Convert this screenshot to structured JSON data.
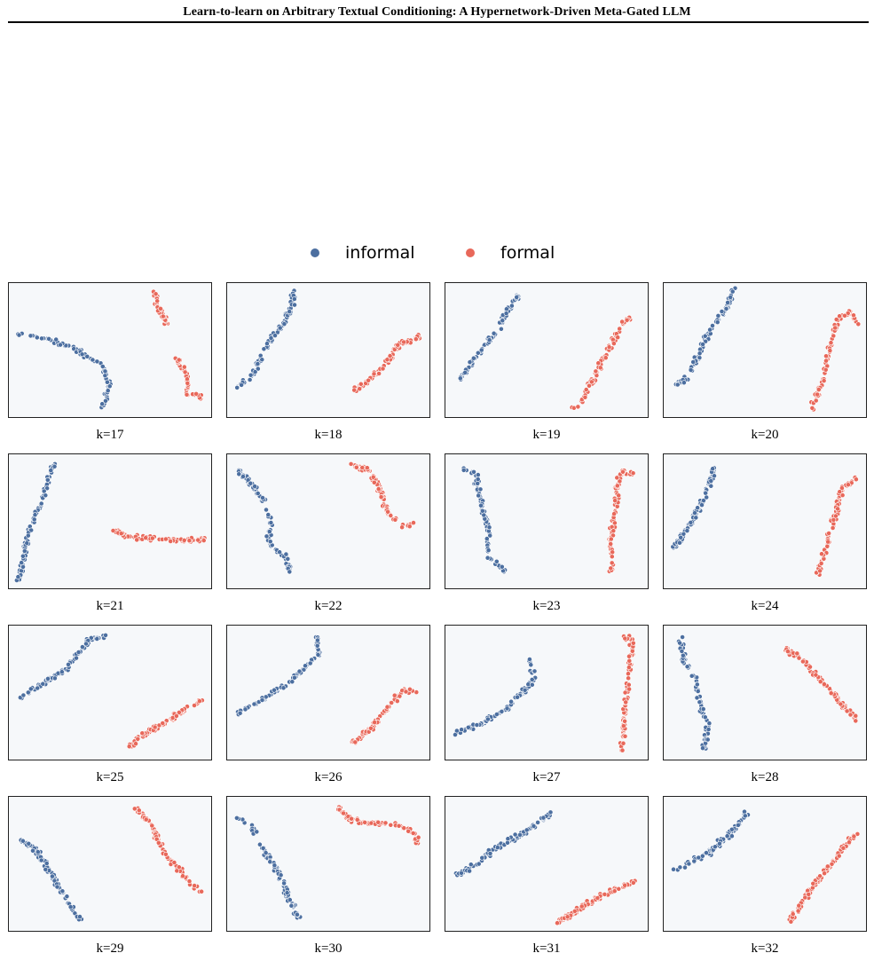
{
  "header": {
    "title": "Learn-to-learn on Arbitrary Textual Conditioning: A Hypernetwork-Driven Meta-Gated LLM"
  },
  "legend": {
    "entries": [
      {
        "label": "informal",
        "color": "#4c6fa0"
      },
      {
        "label": "formal",
        "color": "#e8685a"
      }
    ]
  },
  "colors": {
    "informal": "#4c6fa0",
    "formal": "#e8685a",
    "panel_background": "#f6f8fa"
  },
  "chart_data": [
    {
      "type": "scatter",
      "caption": "k=17",
      "series": [
        {
          "name": "informal",
          "trace": [
            [
              0.04,
              0.63
            ],
            [
              0.15,
              0.6
            ],
            [
              0.3,
              0.53
            ],
            [
              0.45,
              0.4
            ],
            [
              0.5,
              0.25
            ],
            [
              0.46,
              0.07
            ]
          ]
        },
        {
          "name": "formal",
          "trace": [
            [
              0.72,
              0.93
            ],
            [
              0.74,
              0.8
            ],
            [
              0.78,
              0.7
            ]
          ],
          "trace2": [
            [
              0.83,
              0.44
            ],
            [
              0.88,
              0.32
            ],
            [
              0.88,
              0.18
            ],
            [
              0.96,
              0.15
            ]
          ]
        }
      ]
    },
    {
      "type": "scatter",
      "caption": "k=18",
      "series": [
        {
          "name": "informal",
          "trace": [
            [
              0.05,
              0.22
            ],
            [
              0.12,
              0.3
            ],
            [
              0.2,
              0.55
            ],
            [
              0.28,
              0.7
            ],
            [
              0.32,
              0.83
            ],
            [
              0.33,
              0.96
            ]
          ]
        },
        {
          "name": "formal",
          "trace": [
            [
              0.63,
              0.2
            ],
            [
              0.72,
              0.3
            ],
            [
              0.78,
              0.38
            ],
            [
              0.85,
              0.55
            ],
            [
              0.93,
              0.58
            ],
            [
              0.96,
              0.62
            ]
          ]
        }
      ]
    },
    {
      "type": "scatter",
      "caption": "k=19",
      "series": [
        {
          "name": "informal",
          "trace": [
            [
              0.05,
              0.24
            ],
            [
              0.12,
              0.38
            ],
            [
              0.2,
              0.55
            ],
            [
              0.26,
              0.65
            ],
            [
              0.3,
              0.78
            ],
            [
              0.36,
              0.92
            ]
          ]
        },
        {
          "name": "formal",
          "trace": [
            [
              0.63,
              0.06
            ],
            [
              0.68,
              0.12
            ],
            [
              0.75,
              0.35
            ],
            [
              0.82,
              0.55
            ],
            [
              0.88,
              0.7
            ],
            [
              0.92,
              0.75
            ]
          ]
        }
      ]
    },
    {
      "type": "scatter",
      "caption": "k=20",
      "series": [
        {
          "name": "informal",
          "trace": [
            [
              0.05,
              0.22
            ],
            [
              0.12,
              0.3
            ],
            [
              0.18,
              0.48
            ],
            [
              0.22,
              0.63
            ],
            [
              0.3,
              0.78
            ],
            [
              0.35,
              0.96
            ]
          ]
        },
        {
          "name": "formal",
          "trace": [
            [
              0.73,
              0.06
            ],
            [
              0.78,
              0.25
            ],
            [
              0.82,
              0.5
            ],
            [
              0.86,
              0.73
            ],
            [
              0.92,
              0.78
            ],
            [
              0.96,
              0.7
            ]
          ]
        }
      ]
    },
    {
      "type": "scatter",
      "caption": "k=21",
      "series": [
        {
          "name": "informal",
          "trace": [
            [
              0.04,
              0.05
            ],
            [
              0.08,
              0.25
            ],
            [
              0.1,
              0.45
            ],
            [
              0.15,
              0.6
            ],
            [
              0.18,
              0.75
            ],
            [
              0.22,
              0.92
            ]
          ]
        },
        {
          "name": "formal",
          "trace": [
            [
              0.52,
              0.43
            ],
            [
              0.6,
              0.38
            ],
            [
              0.75,
              0.37
            ],
            [
              0.85,
              0.35
            ],
            [
              0.96,
              0.37
            ]
          ]
        }
      ]
    },
    {
      "type": "scatter",
      "caption": "k=22",
      "series": [
        {
          "name": "informal",
          "trace": [
            [
              0.05,
              0.88
            ],
            [
              0.12,
              0.78
            ],
            [
              0.18,
              0.65
            ],
            [
              0.22,
              0.5
            ],
            [
              0.2,
              0.35
            ],
            [
              0.28,
              0.25
            ],
            [
              0.32,
              0.1
            ]
          ]
        },
        {
          "name": "formal",
          "trace": [
            [
              0.62,
              0.92
            ],
            [
              0.7,
              0.88
            ],
            [
              0.75,
              0.75
            ],
            [
              0.8,
              0.55
            ],
            [
              0.88,
              0.45
            ],
            [
              0.94,
              0.5
            ]
          ]
        }
      ]
    },
    {
      "type": "scatter",
      "caption": "k=23",
      "series": [
        {
          "name": "informal",
          "trace": [
            [
              0.08,
              0.9
            ],
            [
              0.15,
              0.85
            ],
            [
              0.18,
              0.6
            ],
            [
              0.22,
              0.4
            ],
            [
              0.2,
              0.25
            ],
            [
              0.3,
              0.12
            ]
          ]
        },
        {
          "name": "formal",
          "trace": [
            [
              0.82,
              0.1
            ],
            [
              0.82,
              0.4
            ],
            [
              0.84,
              0.6
            ],
            [
              0.85,
              0.8
            ],
            [
              0.88,
              0.88
            ],
            [
              0.93,
              0.85
            ]
          ]
        }
      ]
    },
    {
      "type": "scatter",
      "caption": "k=24",
      "series": [
        {
          "name": "informal",
          "trace": [
            [
              0.05,
              0.3
            ],
            [
              0.12,
              0.45
            ],
            [
              0.18,
              0.62
            ],
            [
              0.22,
              0.75
            ],
            [
              0.25,
              0.9
            ]
          ]
        },
        {
          "name": "formal",
          "trace": [
            [
              0.76,
              0.1
            ],
            [
              0.8,
              0.3
            ],
            [
              0.85,
              0.55
            ],
            [
              0.88,
              0.75
            ],
            [
              0.95,
              0.82
            ]
          ]
        }
      ]
    },
    {
      "type": "scatter",
      "caption": "k=25",
      "series": [
        {
          "name": "informal",
          "trace": [
            [
              0.05,
              0.45
            ],
            [
              0.15,
              0.55
            ],
            [
              0.28,
              0.67
            ],
            [
              0.4,
              0.9
            ],
            [
              0.48,
              0.92
            ]
          ]
        },
        {
          "name": "formal",
          "trace": [
            [
              0.58,
              0.08
            ],
            [
              0.68,
              0.2
            ],
            [
              0.78,
              0.28
            ],
            [
              0.9,
              0.4
            ],
            [
              0.95,
              0.45
            ]
          ]
        }
      ]
    },
    {
      "type": "scatter",
      "caption": "k=26",
      "series": [
        {
          "name": "informal",
          "trace": [
            [
              0.05,
              0.35
            ],
            [
              0.15,
              0.43
            ],
            [
              0.28,
              0.55
            ],
            [
              0.4,
              0.7
            ],
            [
              0.46,
              0.8
            ],
            [
              0.44,
              0.92
            ]
          ]
        },
        {
          "name": "formal",
          "trace": [
            [
              0.62,
              0.12
            ],
            [
              0.72,
              0.25
            ],
            [
              0.8,
              0.4
            ],
            [
              0.88,
              0.52
            ],
            [
              0.93,
              0.5
            ]
          ]
        }
      ]
    },
    {
      "type": "scatter",
      "caption": "k=27",
      "series": [
        {
          "name": "informal",
          "trace": [
            [
              0.05,
              0.2
            ],
            [
              0.15,
              0.25
            ],
            [
              0.28,
              0.35
            ],
            [
              0.38,
              0.5
            ],
            [
              0.44,
              0.62
            ],
            [
              0.42,
              0.75
            ]
          ]
        },
        {
          "name": "formal",
          "trace": [
            [
              0.87,
              0.05
            ],
            [
              0.88,
              0.25
            ],
            [
              0.9,
              0.55
            ],
            [
              0.92,
              0.8
            ],
            [
              0.92,
              0.92
            ],
            [
              0.88,
              0.9
            ]
          ]
        }
      ]
    },
    {
      "type": "scatter",
      "caption": "k=28",
      "series": [
        {
          "name": "informal",
          "trace": [
            [
              0.08,
              0.92
            ],
            [
              0.1,
              0.75
            ],
            [
              0.16,
              0.58
            ],
            [
              0.18,
              0.4
            ],
            [
              0.22,
              0.25
            ],
            [
              0.2,
              0.08
            ]
          ]
        },
        {
          "name": "formal",
          "trace": [
            [
              0.6,
              0.83
            ],
            [
              0.68,
              0.75
            ],
            [
              0.76,
              0.62
            ],
            [
              0.86,
              0.45
            ],
            [
              0.95,
              0.3
            ]
          ]
        }
      ]
    },
    {
      "type": "scatter",
      "caption": "k=29",
      "series": [
        {
          "name": "informal",
          "trace": [
            [
              0.05,
              0.68
            ],
            [
              0.12,
              0.62
            ],
            [
              0.18,
              0.5
            ],
            [
              0.24,
              0.35
            ],
            [
              0.3,
              0.2
            ],
            [
              0.35,
              0.08
            ]
          ]
        },
        {
          "name": "formal",
          "trace": [
            [
              0.62,
              0.92
            ],
            [
              0.7,
              0.8
            ],
            [
              0.76,
              0.6
            ],
            [
              0.84,
              0.45
            ],
            [
              0.9,
              0.35
            ],
            [
              0.95,
              0.3
            ]
          ]
        }
      ]
    },
    {
      "type": "scatter",
      "caption": "k=30",
      "series": [
        {
          "name": "informal",
          "trace": [
            [
              0.05,
              0.85
            ],
            [
              0.12,
              0.78
            ],
            [
              0.18,
              0.6
            ],
            [
              0.25,
              0.45
            ],
            [
              0.3,
              0.25
            ],
            [
              0.36,
              0.08
            ]
          ]
        },
        {
          "name": "formal",
          "trace": [
            [
              0.55,
              0.92
            ],
            [
              0.62,
              0.82
            ],
            [
              0.72,
              0.8
            ],
            [
              0.82,
              0.8
            ],
            [
              0.93,
              0.72
            ],
            [
              0.94,
              0.65
            ]
          ]
        }
      ]
    },
    {
      "type": "scatter",
      "caption": "k=31",
      "series": [
        {
          "name": "informal",
          "trace": [
            [
              0.05,
              0.4
            ],
            [
              0.15,
              0.5
            ],
            [
              0.25,
              0.62
            ],
            [
              0.38,
              0.72
            ],
            [
              0.48,
              0.82
            ],
            [
              0.52,
              0.88
            ]
          ]
        },
        {
          "name": "formal",
          "trace": [
            [
              0.55,
              0.06
            ],
            [
              0.62,
              0.12
            ],
            [
              0.72,
              0.22
            ],
            [
              0.8,
              0.28
            ],
            [
              0.9,
              0.35
            ],
            [
              0.95,
              0.37
            ]
          ]
        }
      ]
    },
    {
      "type": "scatter",
      "caption": "k=32",
      "series": [
        {
          "name": "informal",
          "trace": [
            [
              0.05,
              0.45
            ],
            [
              0.12,
              0.5
            ],
            [
              0.22,
              0.58
            ],
            [
              0.32,
              0.72
            ],
            [
              0.38,
              0.82
            ],
            [
              0.42,
              0.9
            ]
          ]
        },
        {
          "name": "formal",
          "trace": [
            [
              0.62,
              0.06
            ],
            [
              0.7,
              0.25
            ],
            [
              0.8,
              0.45
            ],
            [
              0.88,
              0.6
            ],
            [
              0.95,
              0.72
            ]
          ]
        }
      ]
    }
  ]
}
